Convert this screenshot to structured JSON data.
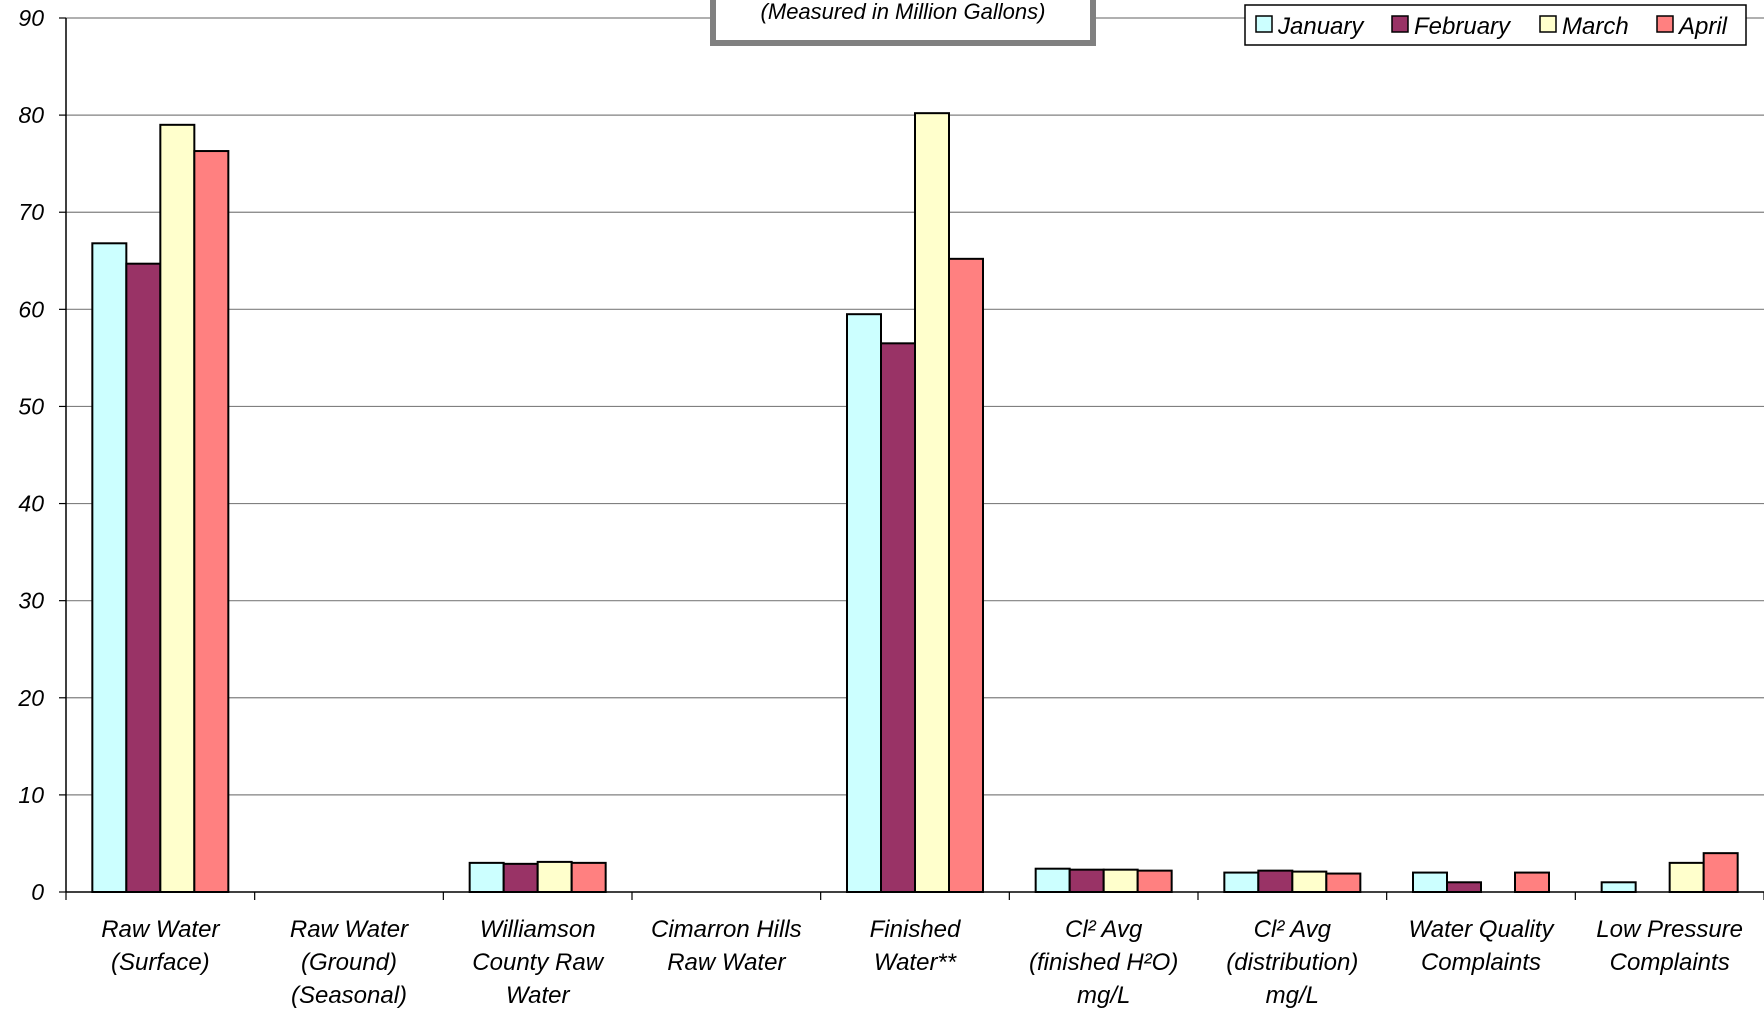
{
  "chart_data": {
    "type": "bar",
    "subtitle": "(Measured in Million Gallons)",
    "categories": [
      [
        "Raw Water",
        "(Surface)"
      ],
      [
        "Raw Water",
        "(Ground)",
        "(Seasonal)"
      ],
      [
        "Williamson",
        "County Raw",
        "Water"
      ],
      [
        "Cimarron Hills",
        "Raw Water"
      ],
      [
        "Finished",
        "Water**"
      ],
      [
        "Cl²  Avg",
        "(finished H²O)",
        "mg/L"
      ],
      [
        "Cl²  Avg",
        "(distribution)",
        "mg/L"
      ],
      [
        "Water Quality",
        "Complaints"
      ],
      [
        "Low Pressure",
        "Complaints"
      ]
    ],
    "series": [
      {
        "name": "January",
        "color": "#CCFFFF",
        "values": [
          66.8,
          0,
          3.0,
          0,
          59.5,
          2.4,
          2.0,
          2.0,
          1.0
        ]
      },
      {
        "name": "February",
        "color": "#993366",
        "values": [
          64.7,
          0,
          2.9,
          0,
          56.5,
          2.3,
          2.2,
          1.0,
          0
        ]
      },
      {
        "name": "March",
        "color": "#FFFFCC",
        "values": [
          79.0,
          0,
          3.1,
          0,
          80.2,
          2.3,
          2.1,
          0,
          3.0
        ]
      },
      {
        "name": "April",
        "color": "#FF8080",
        "values": [
          76.3,
          0,
          3.0,
          0,
          65.2,
          2.2,
          1.9,
          2.0,
          4.0
        ]
      }
    ],
    "y_ticks": [
      "0",
      "10",
      "20",
      "30",
      "40",
      "50",
      "60",
      "70",
      "80",
      "90"
    ],
    "ylim": [
      0,
      90
    ],
    "grid": true,
    "legend_position": "top-right"
  }
}
